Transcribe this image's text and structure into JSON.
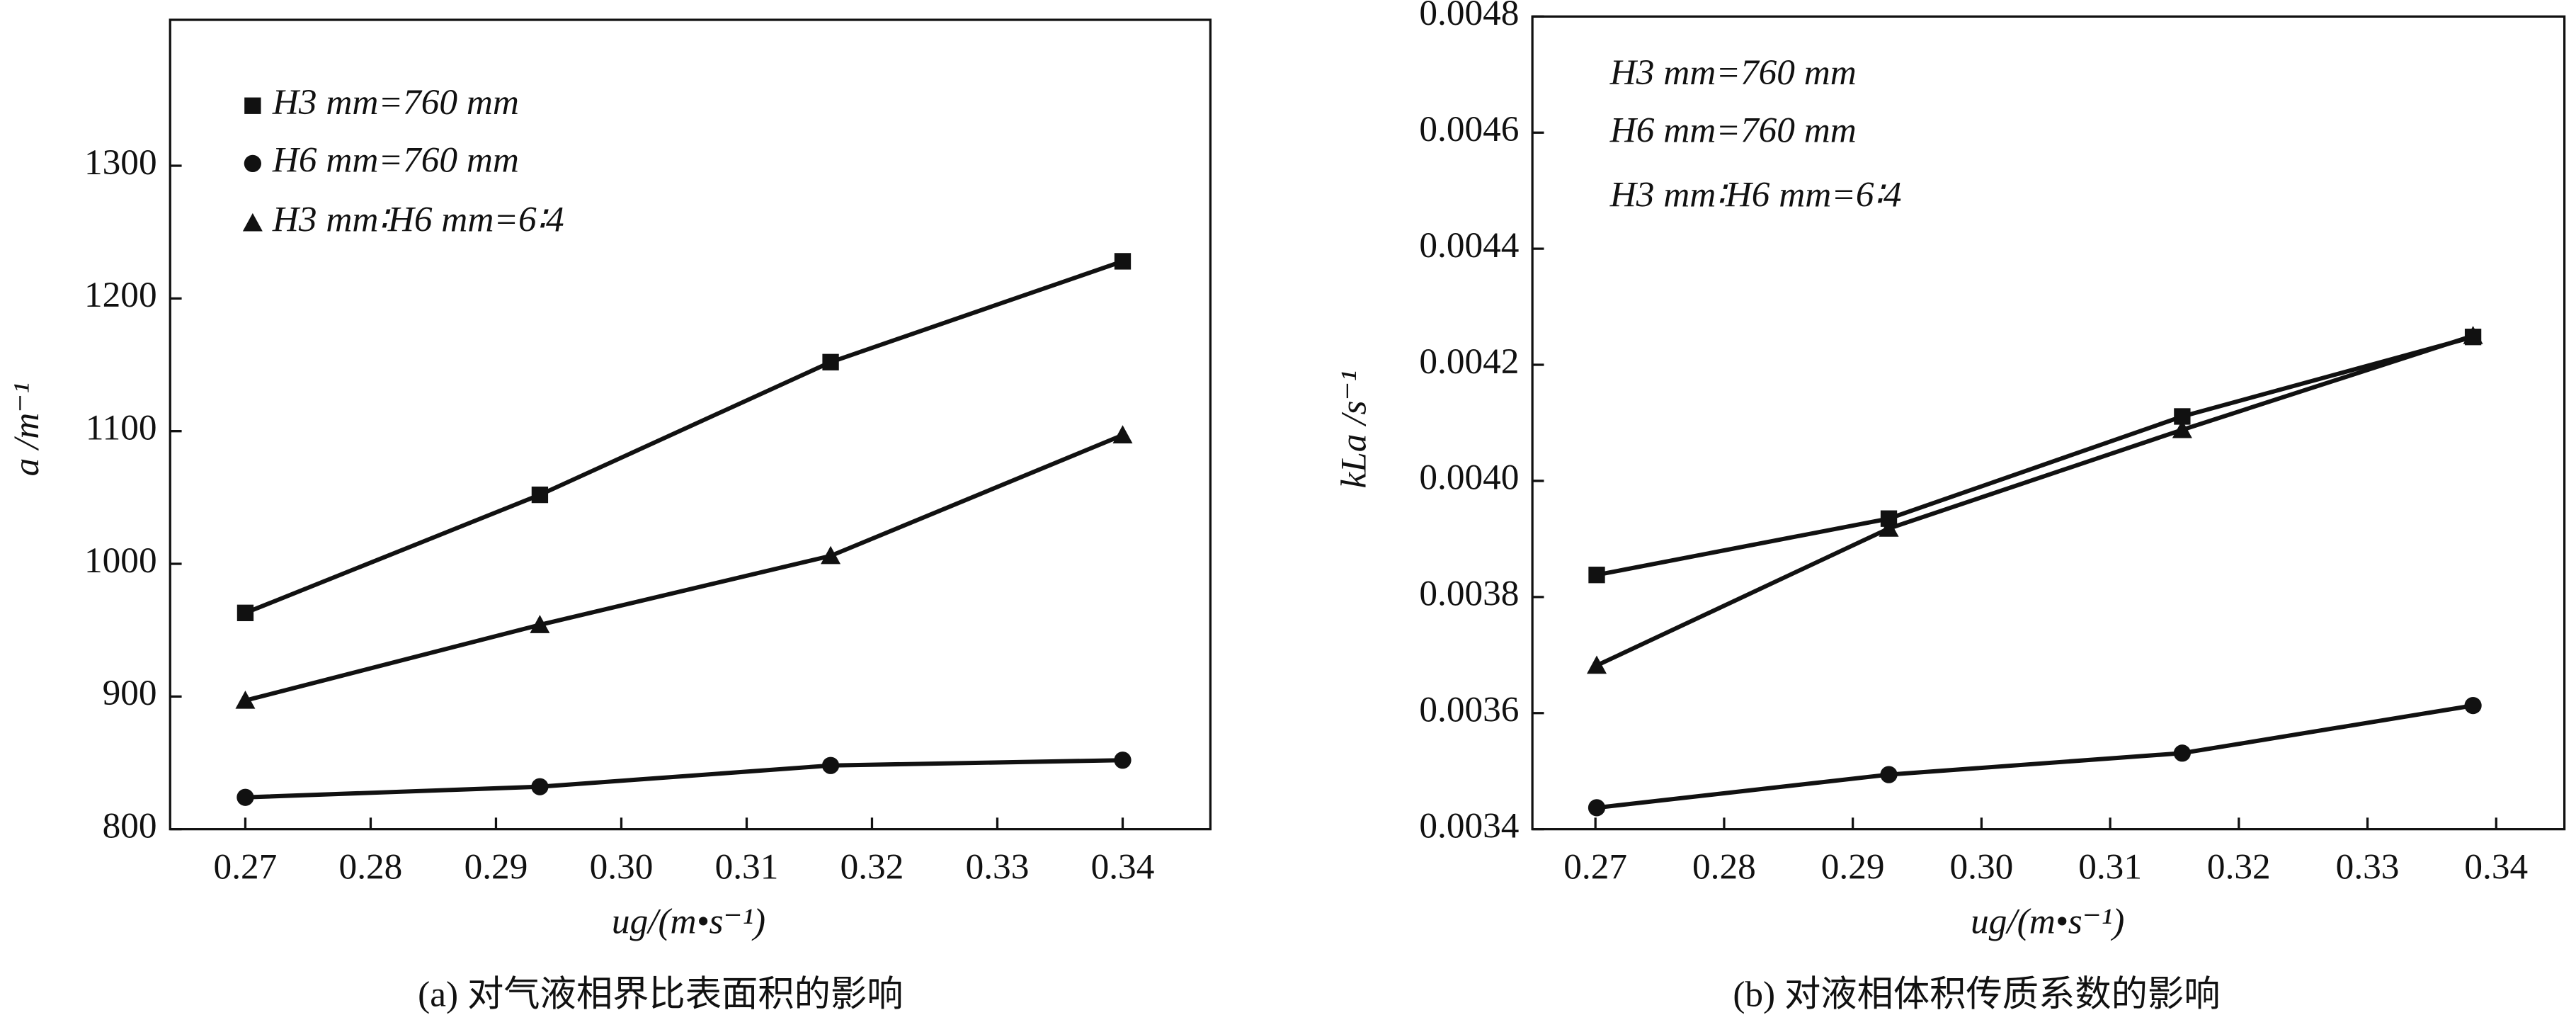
{
  "chart_data": [
    {
      "type": "line",
      "xlabel": "ug/(m•s⁻¹)",
      "ylabel": "a /m⁻¹",
      "caption": "(a) 对气液相界比表面积的影响",
      "x": [
        0.27,
        0.2935,
        0.3167,
        0.34
      ],
      "xlim": [
        0.264,
        0.347
      ],
      "xticks": [
        0.27,
        0.28,
        {
          "value": 0.29,
          "label": "0.29"
        },
        {
          "value": 0.3,
          "label": "0.30"
        },
        0.31,
        0.32,
        0.33,
        0.34
      ],
      "ylim": [
        800,
        1410
      ],
      "yticks": [
        800,
        900,
        1000,
        1100,
        1200,
        1300
      ],
      "legend_markers": true,
      "series": [
        {
          "name": "H3 mm=760 mm",
          "marker": "square",
          "color": "#111111",
          "values": [
            963,
            1052,
            1152,
            1228
          ]
        },
        {
          "name": "H6 mm=760 mm",
          "marker": "circle",
          "color": "#111111",
          "values": [
            824,
            832,
            848,
            852
          ]
        },
        {
          "name": "H3 mm∶H6 mm=6∶4",
          "marker": "triangle",
          "color": "#111111",
          "values": [
            897,
            954,
            1006,
            1097
          ]
        }
      ]
    },
    {
      "type": "line",
      "xlabel": "ug/(m•s⁻¹)",
      "ylabel": "kLa /s⁻¹",
      "caption": "(b) 对液相体积传质系数的影响",
      "x": [
        0.2701,
        0.2928,
        0.3156,
        0.3382
      ],
      "xlim": [
        0.2651,
        0.3453
      ],
      "xticks": [
        0.27,
        0.28,
        0.29,
        {
          "value": 0.3,
          "label": "0.30"
        },
        0.31,
        0.32,
        0.33,
        0.34
      ],
      "ylim": [
        0.0034,
        0.0048
      ],
      "yticks": [
        {
          "value": 0.0034,
          "label": "0.0034"
        },
        {
          "value": 0.0036,
          "label": "0.0036"
        },
        {
          "value": 0.0038,
          "label": "0.0038"
        },
        {
          "value": 0.004,
          "label": "0.0040"
        },
        {
          "value": 0.0042,
          "label": "0.0042"
        },
        {
          "value": 0.0044,
          "label": "0.0044"
        },
        {
          "value": 0.0046,
          "label": "0.0046"
        },
        {
          "value": 0.0048,
          "label": "0.0048"
        }
      ],
      "legend_markers": false,
      "series": [
        {
          "name": "H3 mm=760 mm",
          "marker": "square",
          "color": "#111111",
          "values": [
            0.003838,
            0.003935,
            0.004111,
            0.004248
          ]
        },
        {
          "name": "H6 mm=760 mm",
          "marker": "circle",
          "color": "#111111",
          "values": [
            0.003437,
            0.003494,
            0.003531,
            0.003613
          ]
        },
        {
          "name": "H3 mm∶H6 mm=6∶4",
          "marker": "triangle",
          "color": "#111111",
          "values": [
            0.003682,
            0.003918,
            0.004088,
            0.00425
          ]
        }
      ]
    }
  ]
}
